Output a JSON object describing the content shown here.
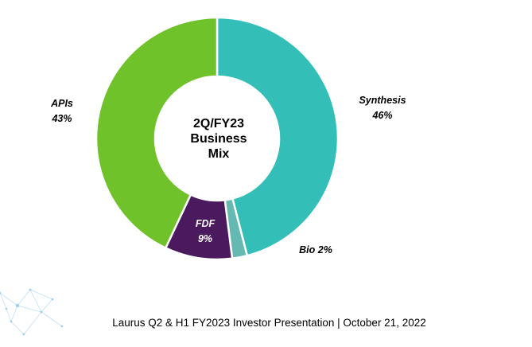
{
  "chart_data": {
    "type": "pie",
    "donut": true,
    "center_title_lines": [
      "2Q/FY23",
      "Business",
      "Mix"
    ],
    "start_category": "Synthesis",
    "direction": "clockwise",
    "slices": [
      {
        "label": "Synthesis",
        "value": 46,
        "value_label": "46%",
        "color": "#33BFB8"
      },
      {
        "label": "Bio",
        "value": 2,
        "value_label": "2%",
        "color": "#66B9B2"
      },
      {
        "label": "FDF",
        "value": 9,
        "value_label": "9%",
        "color": "#4B1A5E"
      },
      {
        "label": "APIs",
        "value": 43,
        "value_label": "43%",
        "color": "#6FC22A"
      }
    ]
  },
  "footer": {
    "text": "Laurus Q2 & H1 FY2023 Investor Presentation | October 21, 2022"
  },
  "decoration": {
    "network_color": "#8FC7E8"
  }
}
